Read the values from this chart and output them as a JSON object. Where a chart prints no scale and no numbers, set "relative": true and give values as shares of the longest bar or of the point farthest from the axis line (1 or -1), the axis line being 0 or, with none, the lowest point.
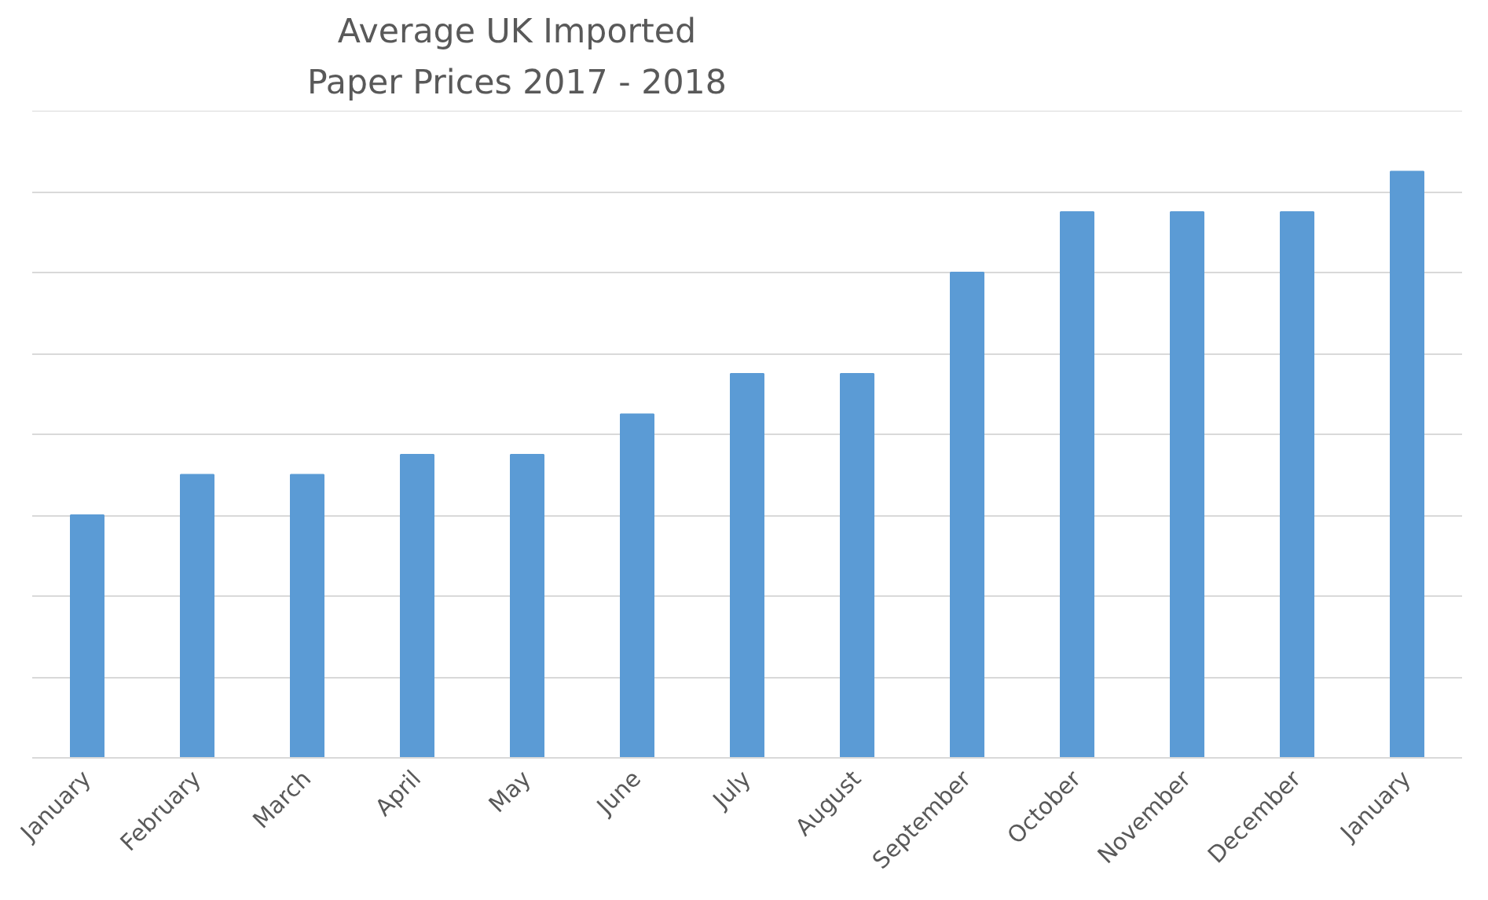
{
  "chart_data": {
    "type": "bar",
    "title": "Average UK Imported\nPaper Prices 2017 - 2018",
    "categories": [
      "January",
      "February",
      "March",
      "April",
      "May",
      "June",
      "July",
      "August",
      "September",
      "October",
      "November",
      "December",
      "January"
    ],
    "values": [
      0.414,
      0.483,
      0.483,
      0.517,
      0.517,
      0.586,
      0.655,
      0.655,
      0.828,
      0.931,
      0.931,
      0.931,
      1
    ],
    "color": "#5b9bd5",
    "relative": true,
    "grid": "y"
  }
}
